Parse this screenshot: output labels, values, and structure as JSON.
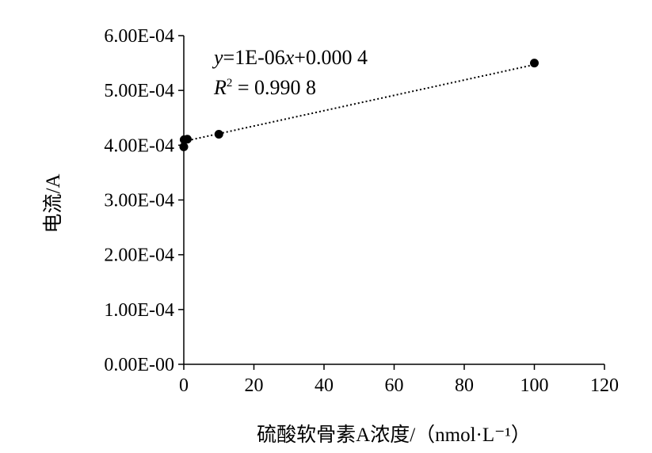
{
  "chart_data": {
    "type": "scatter",
    "xlabel": "硫酸软骨素A浓度/（nmol·L⁻¹）",
    "ylabel": "电流/A",
    "xlim": [
      0,
      120
    ],
    "ylim": [
      0,
      0.0006
    ],
    "x_ticks": [
      0,
      20,
      40,
      60,
      80,
      100,
      120
    ],
    "y_ticks": [
      0,
      0.0001,
      0.0002,
      0.0003,
      0.0004,
      0.0005,
      0.0006
    ],
    "x_tick_labels": [
      "0",
      "20",
      "40",
      "60",
      "80",
      "100",
      "120"
    ],
    "y_tick_labels": [
      "0.00E-00",
      "1.00E-04",
      "2.00E-04",
      "3.00E-04",
      "4.00E-04",
      "5.00E-04",
      "6.00E-04"
    ],
    "points": [
      {
        "x": 0,
        "y": 0.000397
      },
      {
        "x": 0.1,
        "y": 0.00041
      },
      {
        "x": 1,
        "y": 0.000411
      },
      {
        "x": 10,
        "y": 0.00042
      },
      {
        "x": 100,
        "y": 0.00055
      }
    ],
    "trendline": {
      "type": "linear",
      "style": "dotted",
      "slope": 1.4e-06,
      "intercept": 0.000407,
      "x_range": [
        0,
        100
      ]
    },
    "equation": {
      "y_var": "y",
      "eq_rest_1": "=1E-06",
      "x_var": "x",
      "eq_rest_2": "+0.000 4",
      "r_var": "R",
      "r_sup": "2",
      "r_rest": " = 0.990 8"
    },
    "grid": false,
    "legend": "none",
    "colors": {
      "marker": "#000000",
      "line": "#000000",
      "background": "#ffffff"
    }
  }
}
